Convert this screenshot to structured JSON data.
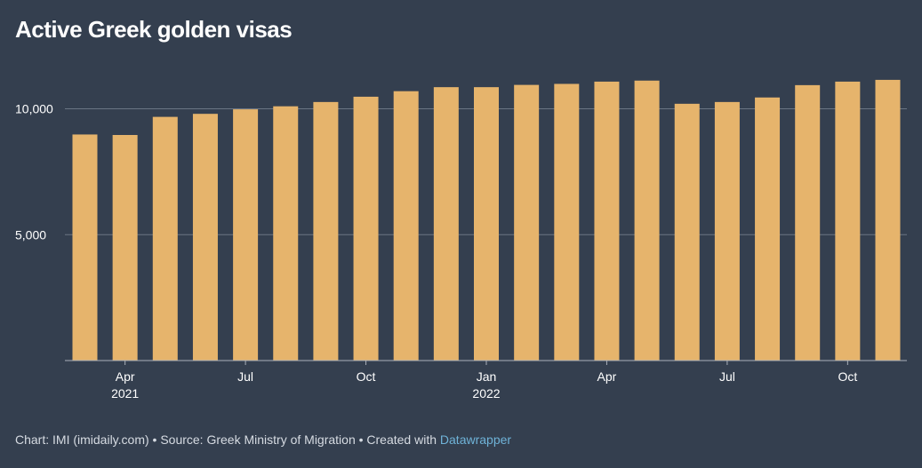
{
  "colors": {
    "background": "#343f4f",
    "bar": "#e6b46c",
    "grid": "#6b7584",
    "axis": "#aab1bb",
    "tick_text": "#ffffff",
    "footer_text": "#d6dbe2",
    "link": "#6fb3d8"
  },
  "footer": {
    "prefix": "Chart: IMI (imidaily.com) • Source: Greek Ministry of Migration • Created with ",
    "link_text": "Datawrapper"
  },
  "chart_data": {
    "type": "bar",
    "title": "Active Greek golden visas",
    "xlabel": "",
    "ylabel": "",
    "ylim": [
      0,
      11500
    ],
    "grid": true,
    "yticks": [
      {
        "value": 5000,
        "label": "5,000"
      },
      {
        "value": 10000,
        "label": "10,000"
      }
    ],
    "categories": [
      "2021-03",
      "2021-04",
      "2021-05",
      "2021-06",
      "2021-07",
      "2021-08",
      "2021-09",
      "2021-10",
      "2021-11",
      "2021-12",
      "2022-01",
      "2022-02",
      "2022-03",
      "2022-04",
      "2022-05",
      "2022-06",
      "2022-07",
      "2022-08",
      "2022-09",
      "2022-10",
      "2022-11"
    ],
    "values": [
      8980,
      8960,
      9680,
      9800,
      9980,
      10100,
      10270,
      10480,
      10700,
      10860,
      10860,
      10950,
      10990,
      11080,
      11120,
      10200,
      10270,
      10450,
      10940,
      11080,
      11150
    ],
    "xticks": [
      {
        "index": 1,
        "label": "Apr",
        "sublabel": "2021"
      },
      {
        "index": 4,
        "label": "Jul",
        "sublabel": ""
      },
      {
        "index": 7,
        "label": "Oct",
        "sublabel": ""
      },
      {
        "index": 10,
        "label": "Jan",
        "sublabel": "2022"
      },
      {
        "index": 13,
        "label": "Apr",
        "sublabel": ""
      },
      {
        "index": 16,
        "label": "Jul",
        "sublabel": ""
      },
      {
        "index": 19,
        "label": "Oct",
        "sublabel": ""
      }
    ]
  }
}
